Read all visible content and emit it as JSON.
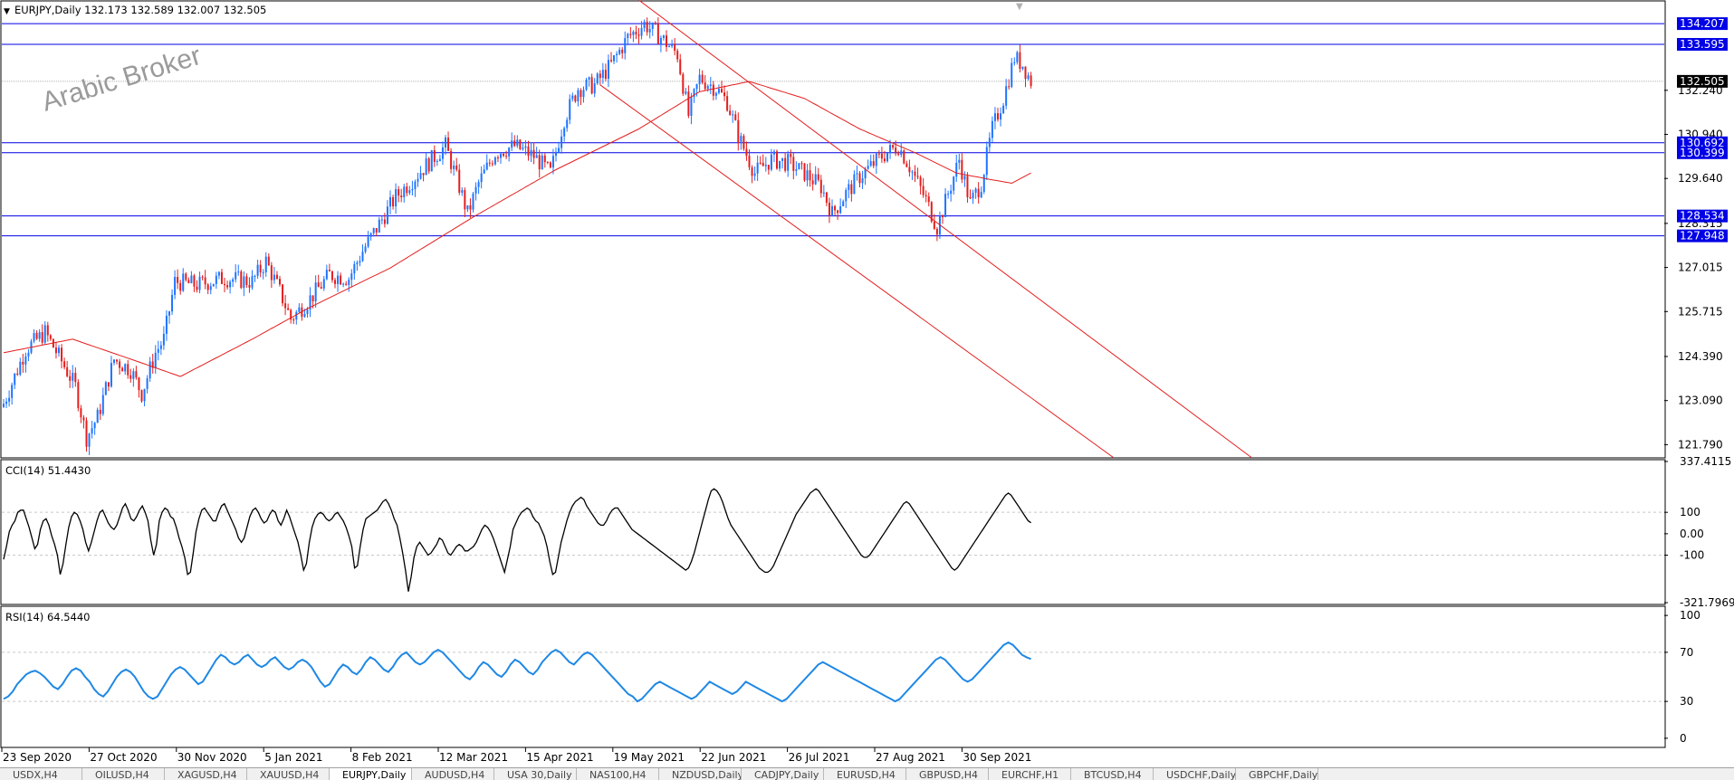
{
  "window": {
    "symbol_line": "EURJPY,Daily  132.173 132.589 132.007 132.505",
    "watermark": "Arabic Broker"
  },
  "colors": {
    "bull": "#1e74ff",
    "bear": "#e41e1e",
    "ma": "#e41e1e",
    "hline": "#0000e6",
    "hline_label_bg": "#0000e6",
    "cci": "#000000",
    "rsi": "#1e88e5",
    "grid": "#c8c8c8"
  },
  "tabs": [
    "USDX,H4",
    "OILUSD,H4",
    "XAGUSD,H4",
    "XAUUSD,H4",
    "EURJPY,Daily",
    "AUDUSD,H4",
    "USA 30,Daily",
    "NAS100,H4",
    "NZDUSD,Daily",
    "CADJPY,Daily",
    "EURUSD,H4",
    "GBPUSD,H4",
    "EURCHF,H1",
    "BTCUSD,H4",
    "USDCHF,Daily",
    "GBPCHF,Daily"
  ],
  "tab_active_index": 4,
  "chart_data": [
    {
      "type": "candlestick",
      "title": "EURJPY,Daily",
      "ohlc_current": {
        "open": 132.173,
        "high": 132.589,
        "low": 132.007,
        "close": 132.505
      },
      "ylim": [
        121.4,
        134.85
      ],
      "y_ticks": [
        "132.240",
        "130.940",
        "129.640",
        "128.315",
        "127.015",
        "125.715",
        "124.390",
        "123.090",
        "121.790"
      ],
      "y_tick_values": [
        132.24,
        130.94,
        129.64,
        128.315,
        127.015,
        125.715,
        124.39,
        123.09,
        121.79
      ],
      "x_ticks": [
        "23 Sep 2020",
        "27 Oct 2020",
        "30 Nov 2020",
        "5 Jan 2021",
        "8 Feb 2021",
        "12 Mar 2021",
        "15 Apr 2021",
        "19 May 2021",
        "22 Jun 2021",
        "26 Jul 2021",
        "27 Aug 2021",
        "30 Sep 2021"
      ],
      "horizontal_levels": [
        134.207,
        133.595,
        130.692,
        130.399,
        128.534,
        127.948
      ],
      "horizontal_level_labels": [
        "134.207",
        "133.595",
        "130.692",
        "130.399",
        "128.534",
        "127.948"
      ],
      "current_price": 132.505,
      "current_price_label": "132.505",
      "close_path": [
        {
          "bar": 0,
          "close": 123.0
        },
        {
          "bar": 8,
          "close": 124.6
        },
        {
          "bar": 15,
          "close": 125.1
        },
        {
          "bar": 20,
          "close": 124.4
        },
        {
          "bar": 26,
          "close": 123.5
        },
        {
          "bar": 30,
          "close": 122.0
        },
        {
          "bar": 34,
          "close": 122.6
        },
        {
          "bar": 40,
          "close": 124.3
        },
        {
          "bar": 46,
          "close": 124.0
        },
        {
          "bar": 50,
          "close": 123.3
        },
        {
          "bar": 55,
          "close": 124.5
        },
        {
          "bar": 58,
          "close": 124.9
        },
        {
          "bar": 62,
          "close": 126.6
        },
        {
          "bar": 70,
          "close": 126.5
        },
        {
          "bar": 80,
          "close": 126.7
        },
        {
          "bar": 90,
          "close": 126.6
        },
        {
          "bar": 95,
          "close": 127.2
        },
        {
          "bar": 100,
          "close": 126.3
        },
        {
          "bar": 104,
          "close": 125.5
        },
        {
          "bar": 110,
          "close": 126.0
        },
        {
          "bar": 118,
          "close": 126.8
        },
        {
          "bar": 125,
          "close": 126.7
        },
        {
          "bar": 130,
          "close": 127.5
        },
        {
          "bar": 136,
          "close": 128.3
        },
        {
          "bar": 142,
          "close": 129.1
        },
        {
          "bar": 148,
          "close": 129.6
        },
        {
          "bar": 155,
          "close": 130.2
        },
        {
          "bar": 160,
          "close": 130.6
        },
        {
          "bar": 165,
          "close": 129.4
        },
        {
          "bar": 168,
          "close": 128.6
        },
        {
          "bar": 172,
          "close": 129.5
        },
        {
          "bar": 178,
          "close": 130.4
        },
        {
          "bar": 185,
          "close": 130.6
        },
        {
          "bar": 192,
          "close": 130.3
        },
        {
          "bar": 198,
          "close": 129.8
        },
        {
          "bar": 203,
          "close": 131.4
        },
        {
          "bar": 208,
          "close": 132.3
        },
        {
          "bar": 214,
          "close": 132.4
        },
        {
          "bar": 220,
          "close": 133.0
        },
        {
          "bar": 226,
          "close": 133.8
        },
        {
          "bar": 232,
          "close": 134.2
        },
        {
          "bar": 238,
          "close": 133.8
        },
        {
          "bar": 244,
          "close": 133.3
        },
        {
          "bar": 248,
          "close": 131.5
        },
        {
          "bar": 252,
          "close": 132.6
        },
        {
          "bar": 258,
          "close": 132.3
        },
        {
          "bar": 262,
          "close": 131.9
        },
        {
          "bar": 266,
          "close": 130.9
        },
        {
          "bar": 272,
          "close": 129.8
        },
        {
          "bar": 278,
          "close": 130.2
        },
        {
          "bar": 284,
          "close": 130.1
        },
        {
          "bar": 290,
          "close": 129.8
        },
        {
          "bar": 296,
          "close": 129.4
        },
        {
          "bar": 300,
          "close": 128.6
        },
        {
          "bar": 305,
          "close": 129.2
        },
        {
          "bar": 310,
          "close": 129.7
        },
        {
          "bar": 318,
          "close": 130.3
        },
        {
          "bar": 324,
          "close": 130.6
        },
        {
          "bar": 328,
          "close": 130.0
        },
        {
          "bar": 334,
          "close": 129.0
        },
        {
          "bar": 338,
          "close": 128.2
        },
        {
          "bar": 342,
          "close": 129.2
        },
        {
          "bar": 346,
          "close": 130.2
        },
        {
          "bar": 350,
          "close": 128.9
        },
        {
          "bar": 354,
          "close": 129.5
        },
        {
          "bar": 358,
          "close": 131.1
        },
        {
          "bar": 362,
          "close": 132.0
        },
        {
          "bar": 366,
          "close": 133.2
        },
        {
          "bar": 369,
          "close": 133.0
        },
        {
          "bar": 372,
          "close": 132.505
        }
      ],
      "ma_path": [
        {
          "bar": 0,
          "value": 124.5
        },
        {
          "bar": 25,
          "value": 124.9
        },
        {
          "bar": 50,
          "value": 124.2
        },
        {
          "bar": 64,
          "value": 123.8
        },
        {
          "bar": 90,
          "value": 124.9
        },
        {
          "bar": 110,
          "value": 125.8
        },
        {
          "bar": 140,
          "value": 127.0
        },
        {
          "bar": 170,
          "value": 128.5
        },
        {
          "bar": 200,
          "value": 129.9
        },
        {
          "bar": 230,
          "value": 131.1
        },
        {
          "bar": 252,
          "value": 132.2
        },
        {
          "bar": 270,
          "value": 132.5
        },
        {
          "bar": 290,
          "value": 132.0
        },
        {
          "bar": 310,
          "value": 131.1
        },
        {
          "bar": 330,
          "value": 130.4
        },
        {
          "bar": 345,
          "value": 129.8
        },
        {
          "bar": 358,
          "value": 129.6
        },
        {
          "bar": 365,
          "value": 129.5
        },
        {
          "bar": 372,
          "value": 129.8
        }
      ],
      "trendlines": [
        {
          "from": {
            "bar": 230,
            "price": 134.9
          },
          "to": {
            "bar": 452,
            "price": 121.4
          }
        },
        {
          "from": {
            "bar": 216,
            "price": 132.4
          },
          "to": {
            "bar": 402,
            "price": 121.4
          }
        }
      ]
    },
    {
      "type": "line",
      "title": "CCI(14) 51.4430",
      "ylim": [
        -321.7969,
        337.4115
      ],
      "y_ticks": [
        "337.4115",
        "100",
        "0.00",
        "-100",
        "-321.7969"
      ],
      "y_tick_values": [
        337.4115,
        100,
        0,
        -100,
        -321.7969
      ],
      "levels": [
        100,
        -100
      ],
      "series": [
        {
          "values": [
            -120,
            -60,
            10,
            40,
            60,
            100,
            110,
            110,
            70,
            30,
            -20,
            -70,
            -50,
            20,
            60,
            70,
            40,
            -10,
            -50,
            -100,
            -190,
            -140,
            -50,
            30,
            80,
            100,
            90,
            60,
            20,
            -40,
            -80,
            -40,
            10,
            60,
            100,
            110,
            80,
            50,
            30,
            20,
            40,
            80,
            120,
            140,
            110,
            70,
            60,
            80,
            110,
            130,
            100,
            60,
            -30,
            -100,
            -50,
            60,
            100,
            120,
            110,
            80,
            70,
            30,
            -20,
            -60,
            -110,
            -190,
            -180,
            -90,
            10,
            70,
            110,
            120,
            100,
            80,
            60,
            60,
            100,
            130,
            140,
            110,
            80,
            50,
            20,
            -20,
            -40,
            -20,
            30,
            80,
            110,
            120,
            100,
            70,
            50,
            60,
            90,
            110,
            100,
            60,
            40,
            70,
            110,
            80,
            40,
            0,
            -40,
            -100,
            -170,
            -140,
            -40,
            30,
            70,
            90,
            100,
            90,
            70,
            60,
            70,
            90,
            100,
            80,
            60,
            30,
            -10,
            -60,
            -160,
            -150,
            -60,
            20,
            70,
            80,
            90,
            100,
            110,
            130,
            150,
            160,
            140,
            110,
            70,
            40,
            -20,
            -90,
            -170,
            -270,
            -200,
            -110,
            -60,
            -40,
            -60,
            -80,
            -100,
            -90,
            -70,
            -50,
            -20,
            -30,
            -60,
            -90,
            -100,
            -80,
            -60,
            -50,
            -60,
            -80,
            -80,
            -70,
            -60,
            -40,
            -10,
            20,
            40,
            30,
            10,
            -20,
            -60,
            -100,
            -140,
            -180,
            -120,
            -60,
            20,
            50,
            80,
            100,
            110,
            120,
            110,
            80,
            60,
            50,
            20,
            -10,
            -60,
            -130,
            -190,
            -180,
            -110,
            -40,
            10,
            60,
            100,
            130,
            150,
            160,
            170,
            160,
            130,
            110,
            90,
            70,
            50,
            40,
            40,
            60,
            90,
            110,
            120,
            120,
            100,
            80,
            60,
            40,
            20,
            10,
            0,
            -10,
            -20,
            -30,
            -40,
            -50,
            -60,
            -70,
            -80,
            -90,
            -100,
            -110,
            -120,
            -130,
            -140,
            -150,
            -160,
            -170,
            -160,
            -130,
            -90,
            -40,
            10,
            60,
            110,
            160,
            200,
            210,
            200,
            180,
            150,
            110,
            70,
            40,
            20,
            0,
            -20,
            -40,
            -60,
            -80,
            -100,
            -120,
            -140,
            -160,
            -170,
            -180,
            -180,
            -170,
            -150,
            -120,
            -90,
            -60,
            -30,
            0,
            30,
            60,
            90,
            110,
            130,
            150,
            170,
            190,
            200,
            210,
            200,
            180,
            160,
            140,
            120,
            100,
            80,
            60,
            40,
            20,
            0,
            -20,
            -40,
            -60,
            -80,
            -100,
            -110,
            -110,
            -100,
            -80,
            -60,
            -40,
            -20,
            0,
            20,
            40,
            60,
            80,
            100,
            120,
            140,
            150,
            140,
            120,
            100,
            80,
            60,
            40,
            20,
            0,
            -20,
            -40,
            -60,
            -80,
            -100,
            -120,
            -140,
            -160,
            -170,
            -160,
            -140,
            -120,
            -100,
            -80,
            -60,
            -40,
            -20,
            0,
            20,
            40,
            60,
            80,
            100,
            120,
            140,
            160,
            180,
            190,
            180,
            160,
            140,
            120,
            100,
            80,
            60,
            51.443
          ]
        }
      ]
    },
    {
      "type": "line",
      "title": "RSI(14) 64.5440",
      "ylim": [
        -6,
        106
      ],
      "y_ticks": [
        "100",
        "70",
        "30",
        "0"
      ],
      "y_tick_values": [
        100,
        70,
        30,
        0
      ],
      "levels": [
        70,
        30
      ],
      "series": [
        {
          "values": [
            32,
            34,
            38,
            44,
            48,
            52,
            54,
            55,
            53,
            50,
            46,
            42,
            40,
            44,
            50,
            55,
            57,
            55,
            50,
            46,
            40,
            36,
            34,
            38,
            44,
            50,
            54,
            56,
            54,
            50,
            44,
            38,
            34,
            32,
            34,
            40,
            46,
            52,
            56,
            58,
            56,
            52,
            48,
            44,
            46,
            52,
            58,
            64,
            68,
            66,
            62,
            60,
            62,
            66,
            68,
            64,
            60,
            58,
            60,
            64,
            66,
            62,
            58,
            56,
            58,
            62,
            64,
            62,
            58,
            52,
            46,
            42,
            44,
            50,
            56,
            60,
            58,
            54,
            52,
            56,
            62,
            66,
            64,
            60,
            56,
            54,
            58,
            64,
            68,
            70,
            66,
            62,
            60,
            62,
            66,
            70,
            72,
            70,
            66,
            62,
            58,
            54,
            50,
            48,
            52,
            58,
            62,
            60,
            56,
            52,
            50,
            54,
            60,
            64,
            62,
            58,
            54,
            52,
            56,
            62,
            66,
            70,
            72,
            70,
            66,
            62,
            60,
            64,
            68,
            70,
            68,
            64,
            60,
            56,
            52,
            48,
            44,
            40,
            36,
            34,
            30,
            32,
            36,
            40,
            44,
            46,
            44,
            42,
            40,
            38,
            36,
            34,
            32,
            34,
            38,
            42,
            46,
            44,
            42,
            40,
            38,
            36,
            38,
            42,
            46,
            44,
            42,
            40,
            38,
            36,
            34,
            32,
            30,
            32,
            36,
            40,
            44,
            48,
            52,
            56,
            60,
            62,
            60,
            58,
            56,
            54,
            52,
            50,
            48,
            46,
            44,
            42,
            40,
            38,
            36,
            34,
            32,
            30,
            32,
            36,
            40,
            44,
            48,
            52,
            56,
            60,
            64,
            66,
            64,
            60,
            56,
            52,
            48,
            46,
            48,
            52,
            56,
            60,
            64,
            68,
            72,
            76,
            78,
            76,
            72,
            68,
            66,
            64.544
          ]
        }
      ]
    }
  ]
}
